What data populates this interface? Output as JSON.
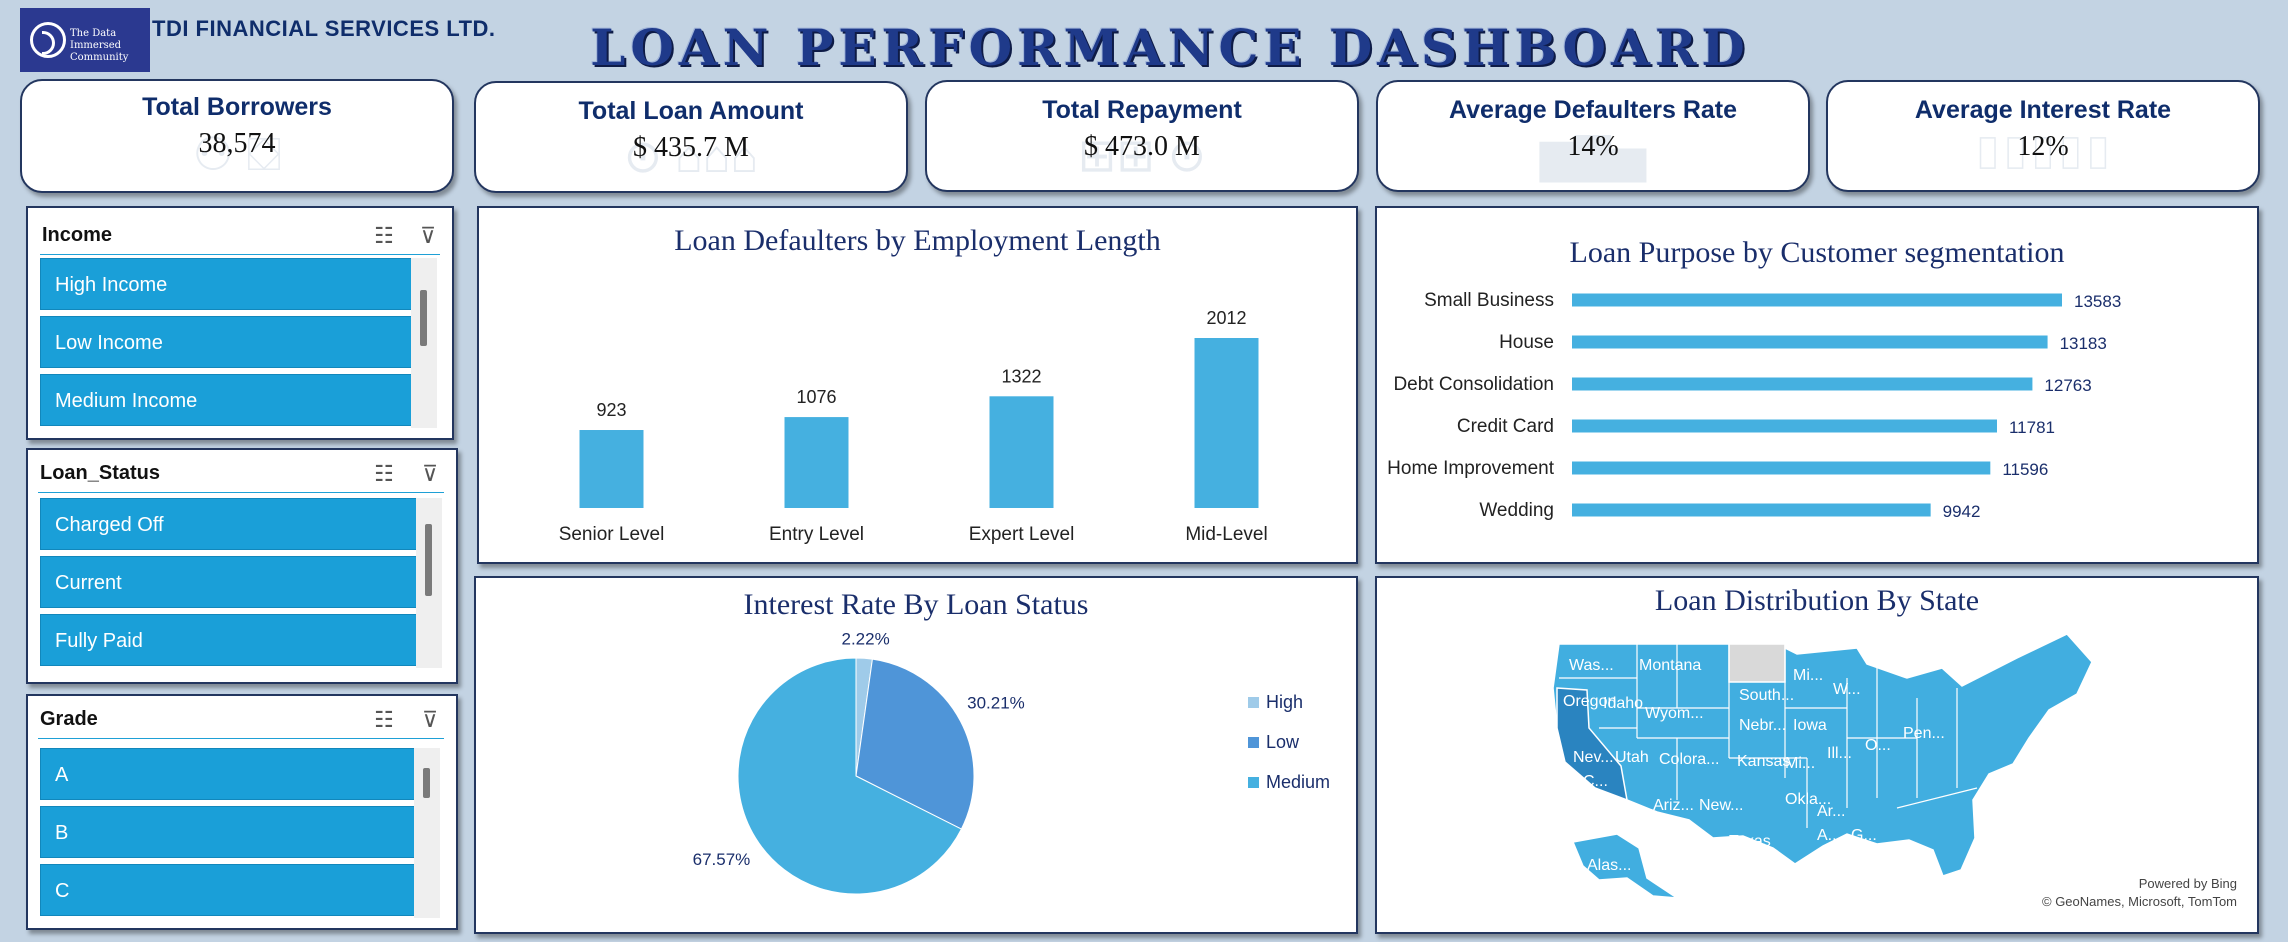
{
  "header": {
    "logo_text": "The Data Immersed Community",
    "company": "TDI FINANCIAL SERVICES LTD.",
    "title": "LOAN PERFORMANCE DASHBOARD"
  },
  "kpis": [
    {
      "title": "Total  Borrowers",
      "value": "38,574"
    },
    {
      "title": "Total Loan Amount",
      "value": "$  435.7 M"
    },
    {
      "title": "Total Repayment",
      "value": "$  473.0 M"
    },
    {
      "title": "Average Defaulters Rate",
      "value": "14%"
    },
    {
      "title": "Average Interest Rate",
      "value": "12%"
    }
  ],
  "slicers": {
    "income": {
      "title": "Income",
      "items": [
        "High Income",
        "Low Income",
        "Medium Income"
      ]
    },
    "loan_status": {
      "title": "Loan_Status",
      "items": [
        "Charged Off",
        "Current",
        "Fully Paid"
      ]
    },
    "grade": {
      "title": "Grade",
      "items": [
        "A",
        "B",
        "C"
      ]
    }
  },
  "icons": {
    "multi_select": "multi-select-icon",
    "clear_filter": "clear-filter-icon"
  },
  "colors": {
    "accent": "#1a9fd8",
    "bar": "#45b0e0",
    "title": "#1a2e6b",
    "border": "#23365f"
  },
  "map": {
    "title": "Loan Distribution By State",
    "credit1": "Powered by Bing",
    "credit2": "© GeoNames, Microsoft, TomTom",
    "labels": [
      "Was...",
      "Montana",
      "Oregon",
      "Idaho",
      "Wyom...",
      "South...",
      "Mi...",
      "W...",
      "Nebr...",
      "Iowa",
      "Nev...",
      "Utah",
      "Colora...",
      "Kansas",
      "Mi...",
      "Ill...",
      "O...",
      "Pen...",
      "C...",
      "Ariz...",
      "New...",
      "Okla...",
      "Ar...",
      "Texas",
      "A...",
      "G...",
      "Alas..."
    ]
  },
  "chart_data": [
    {
      "type": "bar",
      "title": "Loan Defaulters by Employment Length",
      "categories": [
        "Senior Level",
        "Entry Level",
        "Expert Level",
        "Mid-Level"
      ],
      "values": [
        923,
        1076,
        1322,
        2012
      ],
      "grid": false
    },
    {
      "type": "bar",
      "orientation": "horizontal",
      "title": "Loan Purpose by Customer segmentation",
      "categories": [
        "Small Business",
        "House",
        "Debt Consolidation",
        "Credit Card",
        "Home Improvement",
        "Wedding"
      ],
      "values": [
        13583,
        13183,
        12763,
        11781,
        11596,
        9942
      ],
      "grid": false
    },
    {
      "type": "pie",
      "title": "Interest Rate By Loan Status",
      "categories": [
        "High",
        "Low",
        "Medium"
      ],
      "values": [
        2.22,
        30.21,
        67.57
      ],
      "labels": [
        "2.22%",
        "30.21%",
        "67.57%"
      ],
      "colors": [
        "#9fcbe9",
        "#4f95d8",
        "#45b0e0"
      ],
      "legend": "right"
    }
  ]
}
